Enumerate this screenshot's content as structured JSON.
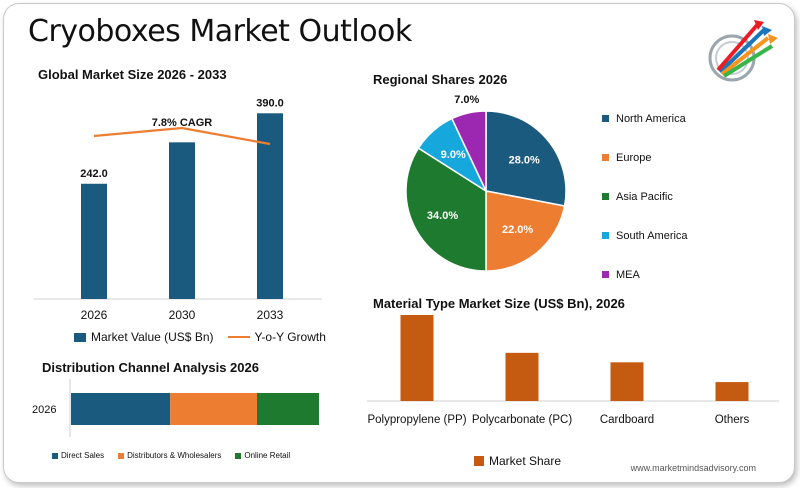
{
  "title": "Cryoboxes Market Outlook",
  "footer": "www.marketmindsadvisory.com",
  "colors": {
    "navy": "#1b5a7f",
    "orange": "#ed7d31",
    "green": "#1e7a2e",
    "sky": "#16a8dc",
    "purple": "#9c27b0",
    "rust": "#c55a11"
  },
  "market_size": {
    "title": "Global Market Size 2026 - 2033",
    "cagr_label": "7.8% CAGR",
    "legend_bar": "Market Value (US$ Bn)",
    "legend_line": "Y-o-Y Growth"
  },
  "regional": {
    "title": "Regional Shares 2026"
  },
  "distribution": {
    "title": "Distribution Channel Analysis 2026"
  },
  "material": {
    "title": "Material Type Market Size (US$ Bn), 2026",
    "legend": "Market Share"
  },
  "chart_data": [
    {
      "type": "bar",
      "title": "Global Market Size 2026 - 2033",
      "categories": [
        "2026",
        "2030",
        "2033"
      ],
      "series": [
        {
          "name": "Market Value (US$ Bn)",
          "values": [
            242.0,
            329,
            390.0
          ],
          "labels": [
            "242.0",
            "",
            "390.0"
          ]
        },
        {
          "name": "Y-o-Y Growth",
          "type": "line",
          "values": [
            7.6,
            7.8,
            7.4
          ]
        }
      ],
      "annotation": "7.8% CAGR",
      "grid": false,
      "legend": "bottom"
    },
    {
      "type": "pie",
      "title": "Regional Shares 2026",
      "labels": [
        "North America",
        "Europe",
        "Asia Pacific",
        "South America",
        "MEA"
      ],
      "values": [
        28.0,
        22.0,
        34.0,
        9.0,
        7.0
      ],
      "value_labels": [
        "28.0%",
        "22.0%",
        "34.0%",
        "9.0%",
        "7.0%"
      ],
      "legend": "right"
    },
    {
      "type": "bar",
      "orientation": "horizontal-stacked",
      "title": "Distribution Channel Analysis 2026",
      "categories": [
        "2026"
      ],
      "series": [
        {
          "name": "Direct Sales",
          "values": [
            40
          ]
        },
        {
          "name": "Distributors & Wholesalers",
          "values": [
            35
          ]
        },
        {
          "name": "Online Retail",
          "values": [
            25
          ]
        }
      ],
      "legend": "bottom"
    },
    {
      "type": "bar",
      "title": "Material Type Market Size (US$ Bn), 2026",
      "categories": [
        "Polypropylene (PP)",
        "Polycarbonate (PC)",
        "Cardboard",
        "Others"
      ],
      "series": [
        {
          "name": "Market Share",
          "values": [
            100,
            56,
            45,
            22
          ]
        }
      ],
      "legend": "bottom"
    }
  ]
}
